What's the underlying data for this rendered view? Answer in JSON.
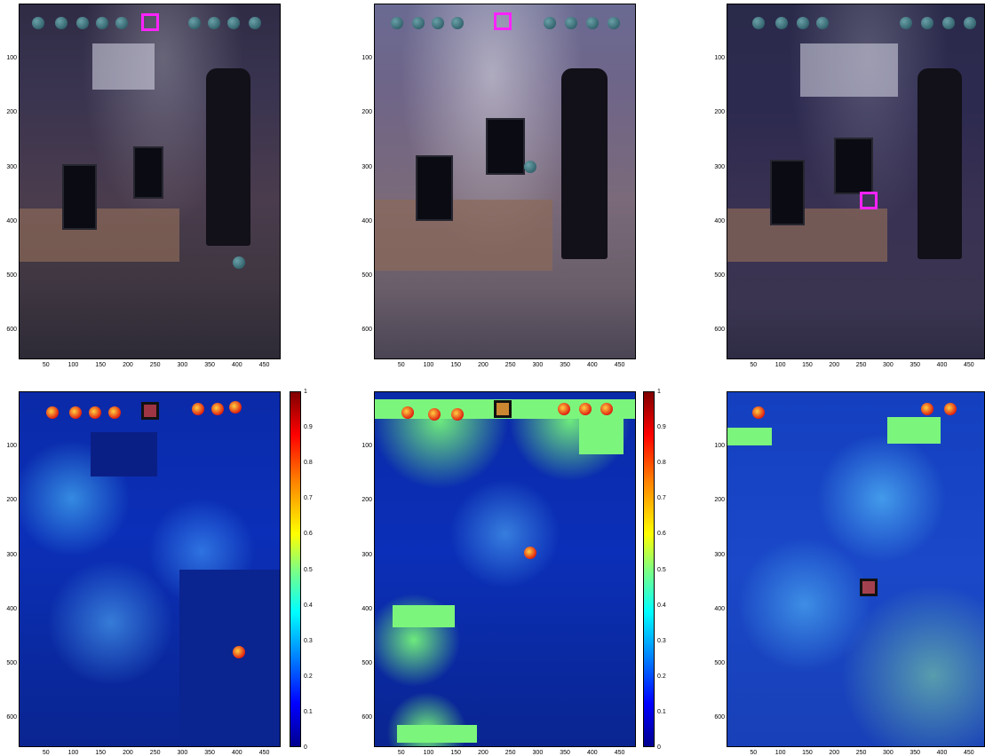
{
  "yticks": [
    "100",
    "200",
    "300",
    "400",
    "500",
    "600"
  ],
  "xticks": [
    "50",
    "100",
    "150",
    "200",
    "250",
    "300",
    "350",
    "400",
    "450"
  ],
  "colorbar_ticks": [
    "1",
    "0.9",
    "0.8",
    "0.7",
    "0.6",
    "0.5",
    "0.4",
    "0.3",
    "0.2",
    "0.1",
    "0"
  ],
  "panels": [
    {
      "name": "top-left",
      "kind": "camera-image"
    },
    {
      "name": "top-middle",
      "kind": "camera-image"
    },
    {
      "name": "top-right",
      "kind": "camera-image"
    },
    {
      "name": "bottom-left",
      "kind": "heatmap"
    },
    {
      "name": "bottom-middle",
      "kind": "heatmap"
    },
    {
      "name": "bottom-right",
      "kind": "heatmap"
    }
  ],
  "colors": {
    "marker_magenta": "#ff22ff",
    "heat_low": "#00008f",
    "heat_high": "#800000",
    "outlier_green": "#80ff80"
  }
}
